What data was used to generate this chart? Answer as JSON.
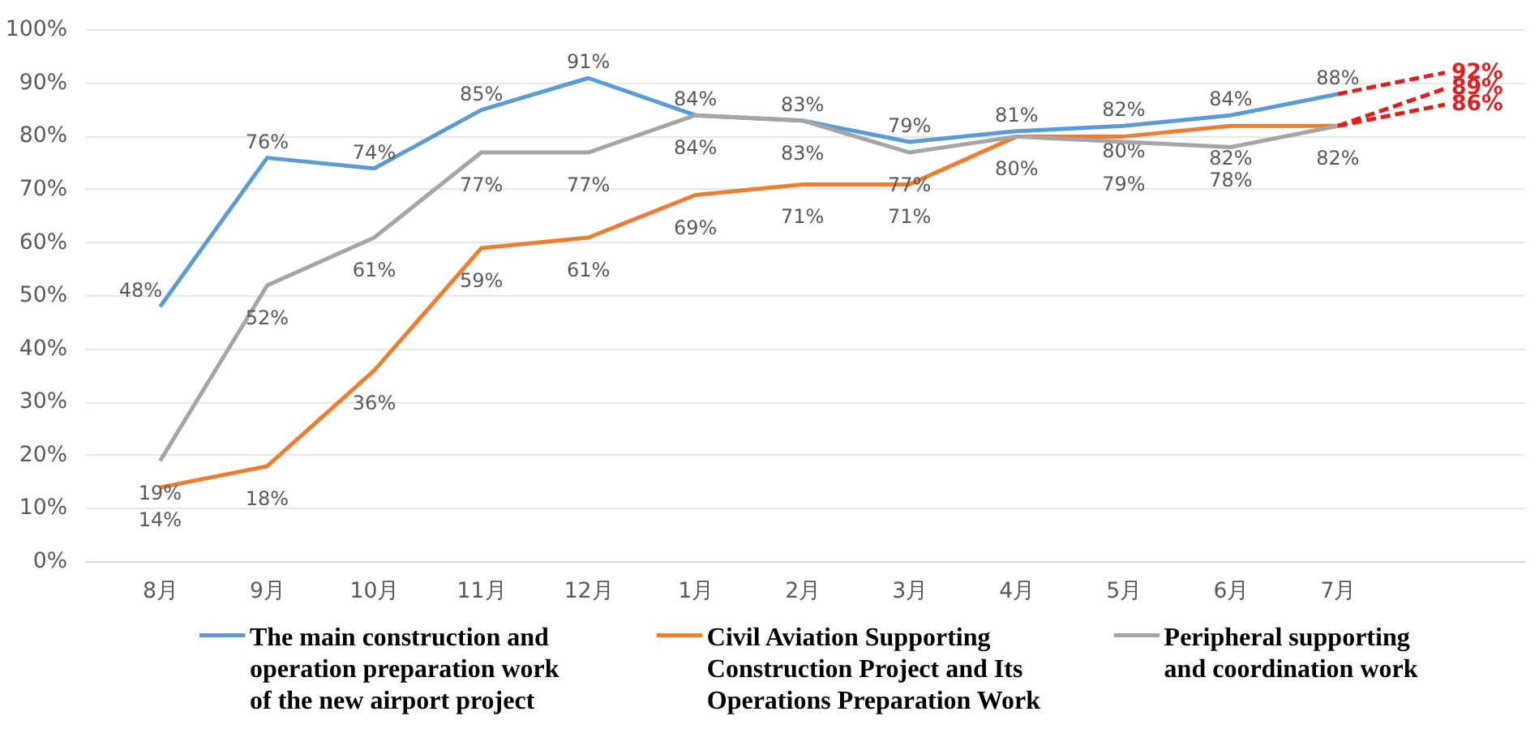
{
  "chart_data": {
    "type": "line",
    "categories": [
      "8月",
      "9月",
      "10月",
      "11月",
      "12月",
      "1月",
      "2月",
      "3月",
      "4月",
      "5月",
      "6月",
      "7月",
      null
    ],
    "ylim": [
      0,
      100
    ],
    "yticks": [
      {
        "value": 0,
        "label": "0%"
      },
      {
        "value": 10,
        "label": "10%"
      },
      {
        "value": 20,
        "label": "20%"
      },
      {
        "value": 30,
        "label": "30%"
      },
      {
        "value": 40,
        "label": "40%"
      },
      {
        "value": 50,
        "label": "50%"
      },
      {
        "value": 60,
        "label": "60%"
      },
      {
        "value": 70,
        "label": "70%"
      },
      {
        "value": 80,
        "label": "80%"
      },
      {
        "value": 90,
        "label": "90%"
      },
      {
        "value": 100,
        "label": "100%"
      }
    ],
    "grid": "y",
    "legend": "bottom",
    "marker": "none",
    "line_style": "solid",
    "series": [
      {
        "name": "The main construction and\noperation preparation work\nof the new airport project",
        "color": "#5b9bd5",
        "values": [
          48,
          76,
          74,
          85,
          91,
          84,
          83,
          79,
          81,
          82,
          84,
          88,
          null
        ],
        "value_labels": [
          "48%",
          "76%",
          "74%",
          "85%",
          "91%",
          "84%",
          "83%",
          "79%",
          "81%",
          "82%",
          "84%",
          "88%",
          null
        ]
      },
      {
        "name": "Civil Aviation Supporting\nConstruction Project and Its\nOperations Preparation Work",
        "color": "#ed7d31",
        "values": [
          14,
          18,
          36,
          59,
          61,
          69,
          71,
          71,
          80,
          80,
          82,
          82,
          null
        ],
        "value_labels": [
          "14%",
          "18%",
          "36%",
          "59%",
          "61%",
          "69%",
          "71%",
          "71%",
          "80%",
          "80%",
          "82%",
          null,
          null
        ]
      },
      {
        "name": "Peripheral supporting\nand coordination work",
        "color": "#a5a5a5",
        "values": [
          19,
          52,
          61,
          77,
          77,
          84,
          83,
          77,
          80,
          79,
          78,
          82,
          null
        ],
        "value_labels": [
          "19%",
          "52%",
          "61%",
          "77%",
          "77%",
          "84%",
          "83%",
          "77%",
          null,
          "79%",
          "78%",
          "82%",
          null
        ]
      },
      {
        "color": "#e02020",
        "line_style": "dashed",
        "values": [
          null,
          null,
          null,
          null,
          null,
          null,
          null,
          null,
          null,
          null,
          null,
          88,
          92
        ],
        "value_labels": [
          null,
          null,
          null,
          null,
          null,
          null,
          null,
          null,
          null,
          null,
          null,
          null,
          "92%"
        ]
      },
      {
        "color": "#e02020",
        "line_style": "dashed",
        "values": [
          null,
          null,
          null,
          null,
          null,
          null,
          null,
          null,
          null,
          null,
          null,
          82,
          89
        ],
        "value_labels": [
          null,
          null,
          null,
          null,
          null,
          null,
          null,
          null,
          null,
          null,
          null,
          null,
          "89%"
        ]
      },
      {
        "color": "#e02020",
        "line_style": "dashed",
        "values": [
          null,
          null,
          null,
          null,
          null,
          null,
          null,
          null,
          null,
          null,
          null,
          82,
          86
        ],
        "value_labels": [
          null,
          null,
          null,
          null,
          null,
          null,
          null,
          null,
          null,
          null,
          null,
          null,
          "86%"
        ]
      }
    ]
  }
}
